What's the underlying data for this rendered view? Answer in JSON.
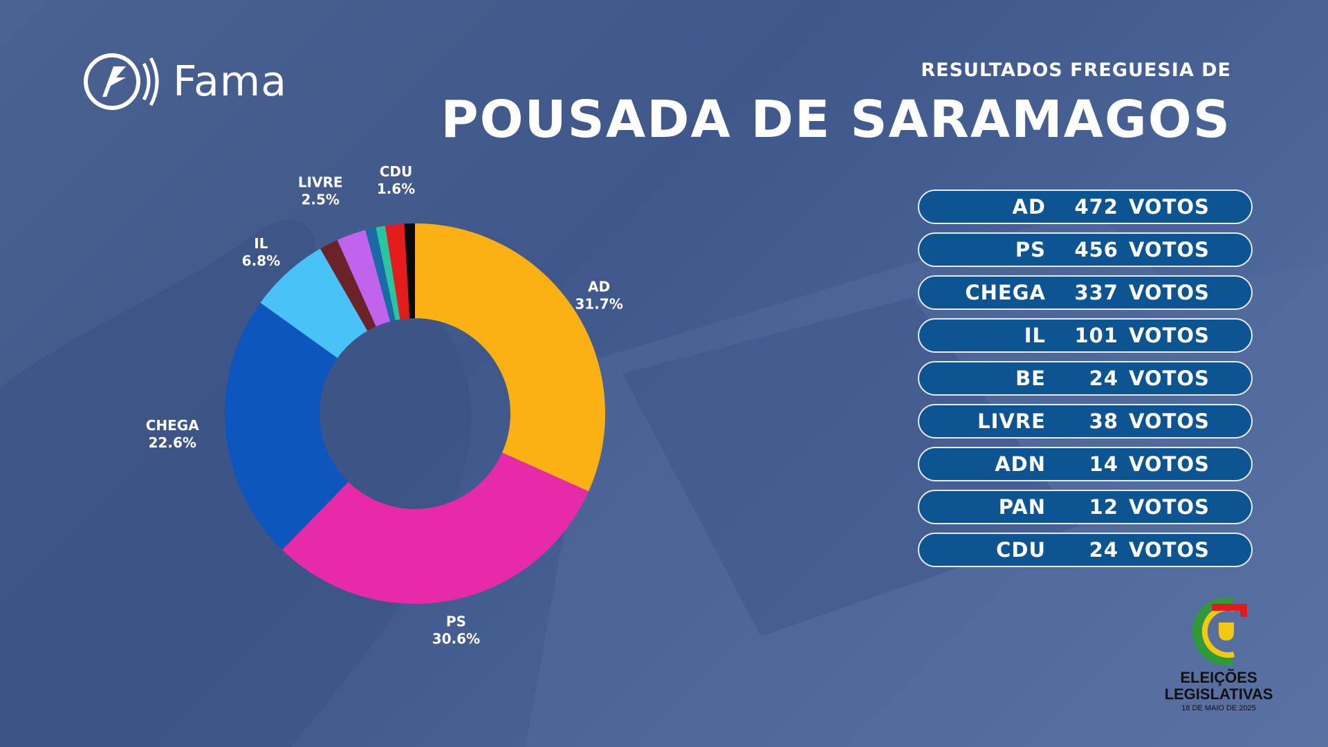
{
  "brand": {
    "name": "Fama"
  },
  "header": {
    "subtitle": "RESULTADOS FREGUESIA DE",
    "title": "POUSADA DE SARAMAGOS"
  },
  "chart_data": {
    "type": "pie",
    "donut": true,
    "slices": [
      {
        "name": "AD",
        "value": 31.7,
        "color": "#fbb013",
        "label": "31.7%"
      },
      {
        "name": "PS",
        "value": 30.6,
        "color": "#e62aa8",
        "label": "30.6%"
      },
      {
        "name": "CHEGA",
        "value": 22.6,
        "color": "#0c56bd",
        "label": "22.6%"
      },
      {
        "name": "IL",
        "value": 6.8,
        "color": "#48c2f7",
        "label": "6.8%"
      },
      {
        "name": "BE",
        "value": 1.6,
        "color": "#6b2327"
      },
      {
        "name": "LIVRE",
        "value": 2.5,
        "color": "#c263ed",
        "label": "2.5%"
      },
      {
        "name": "ADN",
        "value": 0.9,
        "color": "#1a6aa8"
      },
      {
        "name": "PAN",
        "value": 0.8,
        "color": "#27c6a0"
      },
      {
        "name": "CDU",
        "value": 1.6,
        "color": "#e31b1b",
        "label": "1.6%"
      },
      {
        "name": "",
        "value": 0.9,
        "color": "#0a0a0a"
      }
    ]
  },
  "results": [
    {
      "party": "AD",
      "votes": "472",
      "unit": "VOTOS"
    },
    {
      "party": "PS",
      "votes": "456",
      "unit": "VOTOS"
    },
    {
      "party": "CHEGA",
      "votes": "337",
      "unit": "VOTOS"
    },
    {
      "party": "IL",
      "votes": "101",
      "unit": "VOTOS"
    },
    {
      "party": "BE",
      "votes": "24",
      "unit": "VOTOS"
    },
    {
      "party": "LIVRE",
      "votes": "38",
      "unit": "VOTOS"
    },
    {
      "party": "ADN",
      "votes": "14",
      "unit": "VOTOS"
    },
    {
      "party": "PAN",
      "votes": "12",
      "unit": "VOTOS"
    },
    {
      "party": "CDU",
      "votes": "24",
      "unit": "VOTOS"
    }
  ],
  "election": {
    "line1": "ELEIÇÕES",
    "line2": "LEGISLATIVAS",
    "date": "18 DE MAIO DE 2025"
  }
}
